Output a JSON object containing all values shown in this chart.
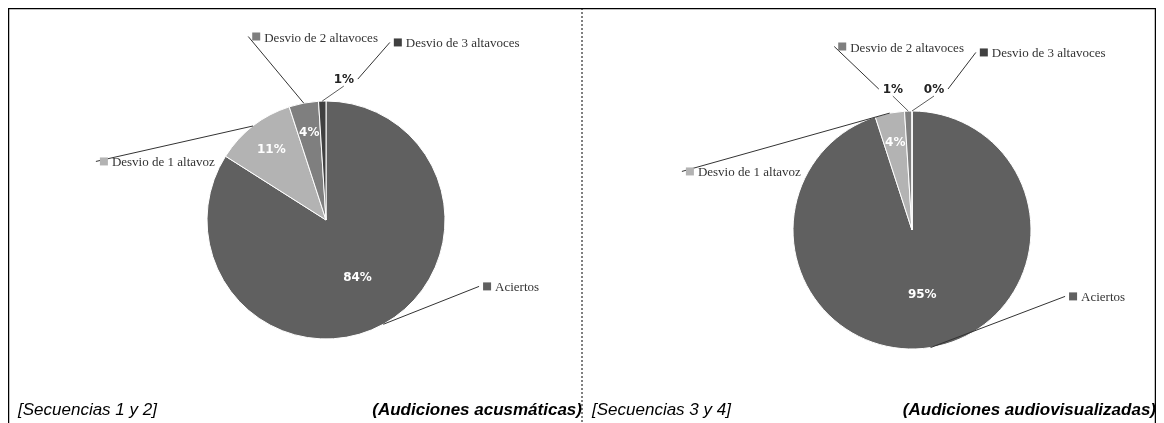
{
  "chart_data": [
    {
      "type": "pie",
      "categories": [
        "Aciertos",
        "Desvio de 1 altavoz",
        "Desvio de 2 altavoces",
        "Desvio de 3 altavoces"
      ],
      "values": [
        84,
        11,
        4,
        1
      ],
      "legend": "top",
      "value_labels": [
        "84%",
        "11%",
        "4%",
        "1%"
      ],
      "colors": [
        "#606060",
        "#b3b3b3",
        "#7f7f7f",
        "#404040"
      ],
      "annotations": [
        "[Secuencias 1 y 2]",
        "(Audiciones acusmáticas)"
      ]
    },
    {
      "type": "pie",
      "categories": [
        "Aciertos",
        "Desvio de 1 altavoz",
        "Desvio de 2 altavoces",
        "Desvio de 3 altavoces"
      ],
      "values": [
        95,
        4,
        1,
        0
      ],
      "legend": "top",
      "value_labels": [
        "95%",
        "4%",
        "1%",
        "0%"
      ],
      "colors": [
        "#606060",
        "#b3b3b3",
        "#7f7f7f",
        "#404040"
      ],
      "annotations": [
        "[Secuencias 3 y 4]",
        "(Audiciones audiovisualizadas)"
      ]
    }
  ]
}
